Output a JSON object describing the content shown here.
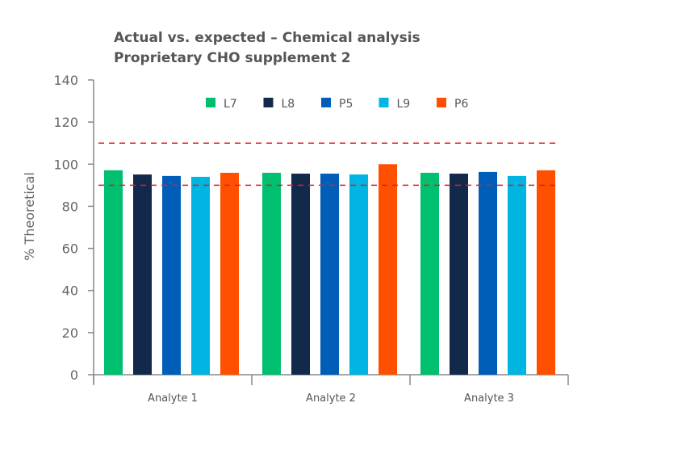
{
  "chart_data": {
    "type": "bar",
    "title": "Actual vs. expected – Chemical analysis",
    "subtitle": "Proprietary CHO supplement 2",
    "xlabel": "",
    "ylabel": "% Theoretical",
    "ylim": [
      0,
      140
    ],
    "yticks": [
      0,
      20,
      40,
      60,
      80,
      100,
      120,
      140
    ],
    "grid": false,
    "legend_position": "top",
    "categories": [
      "Analyte 1",
      "Analyte 2",
      "Analyte 3"
    ],
    "series": [
      {
        "name": "L7",
        "color": "#00BF6F",
        "values": [
          97.1,
          95.9,
          95.9
        ]
      },
      {
        "name": "L8",
        "color": "#13294B",
        "values": [
          95.1,
          95.5,
          95.5
        ]
      },
      {
        "name": "P5",
        "color": "#005EB8",
        "values": [
          94.4,
          95.5,
          96.3
        ]
      },
      {
        "name": "L9",
        "color": "#00B5E2",
        "values": [
          94.0,
          95.1,
          94.4
        ]
      },
      {
        "name": "P6",
        "color": "#FE5000",
        "values": [
          95.9,
          100,
          97.1
        ]
      }
    ],
    "reference_lines": [
      {
        "value": 110,
        "style": "dashed",
        "color": "#E02020"
      },
      {
        "value": 90,
        "style": "dashed",
        "color": "#E02020"
      }
    ]
  }
}
